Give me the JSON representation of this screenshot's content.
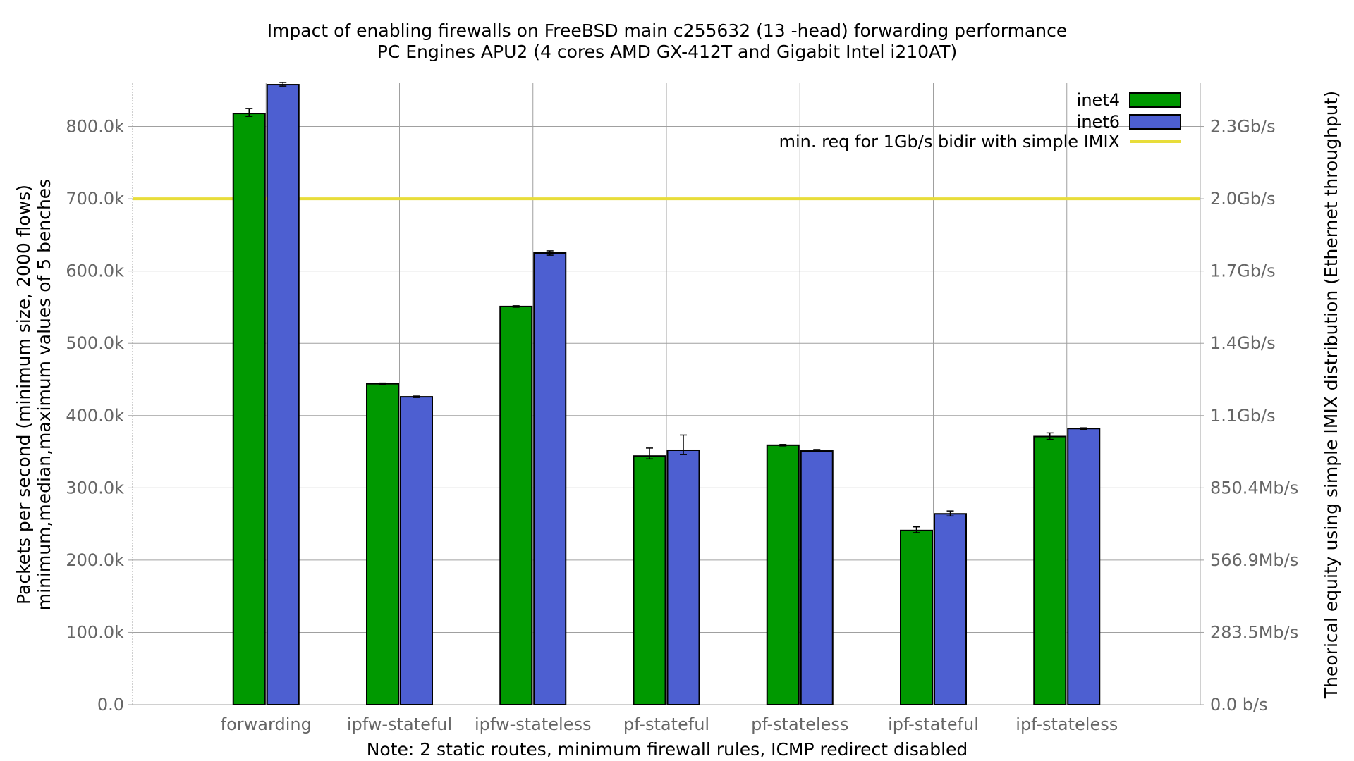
{
  "chart_data": {
    "type": "bar",
    "title": "Impact of enabling firewalls on FreeBSD main c255632 (13 -head) forwarding performance",
    "subtitle": "PC Engines APU2 (4 cores AMD GX-412T and Gigabit Intel i210AT)",
    "ylabel": "Packets per second (minimum size, 2000 flows)",
    "ylabel2": "minimum,median,maximum values of 5 benches",
    "y2label": "Theorical equity using simple IMIX distribution (Ethernet throughput)",
    "note": "Note: 2 static routes, minimum firewall rules, ICMP redirect disabled",
    "ylim": [
      0,
      860000
    ],
    "grid": true,
    "legend_position": "top-right",
    "categories": [
      "forwarding",
      "ipfw-stateful",
      "ipfw-stateless",
      "pf-stateful",
      "pf-stateless",
      "ipf-stateful",
      "ipf-stateless"
    ],
    "yticks": [
      {
        "value": 0,
        "label": "0.0"
      },
      {
        "value": 100000,
        "label": "100.0k"
      },
      {
        "value": 200000,
        "label": "200.0k"
      },
      {
        "value": 300000,
        "label": "300.0k"
      },
      {
        "value": 400000,
        "label": "400.0k"
      },
      {
        "value": 500000,
        "label": "500.0k"
      },
      {
        "value": 600000,
        "label": "600.0k"
      },
      {
        "value": 700000,
        "label": "700.0k"
      },
      {
        "value": 800000,
        "label": "800.0k"
      }
    ],
    "y2ticks": [
      {
        "value": 0,
        "label": "0.0 b/s"
      },
      {
        "value": 100000,
        "label": "283.5Mb/s"
      },
      {
        "value": 200000,
        "label": "566.9Mb/s"
      },
      {
        "value": 300000,
        "label": "850.4Mb/s"
      },
      {
        "value": 400000,
        "label": "1.1Gb/s"
      },
      {
        "value": 500000,
        "label": "1.4Gb/s"
      },
      {
        "value": 600000,
        "label": "1.7Gb/s"
      },
      {
        "value": 700000,
        "label": "2.0Gb/s"
      },
      {
        "value": 800000,
        "label": "2.3Gb/s"
      }
    ],
    "series": [
      {
        "name": "inet4",
        "color": "#009900",
        "values": [
          818000,
          444000,
          551000,
          344000,
          359000,
          241000,
          371000
        ],
        "min": [
          814000,
          443000,
          550000,
          340000,
          358000,
          238000,
          367000
        ],
        "max": [
          825000,
          445000,
          552000,
          355000,
          360000,
          246000,
          376000
        ]
      },
      {
        "name": "inet6",
        "color": "#4d5fd1",
        "values": [
          858000,
          426000,
          625000,
          352000,
          351000,
          264000,
          382000
        ],
        "min": [
          856000,
          425000,
          622000,
          346000,
          350000,
          261000,
          381000
        ],
        "max": [
          861000,
          427000,
          628000,
          373000,
          353000,
          268000,
          383000
        ]
      }
    ],
    "reference_line": {
      "name": "min. req for 1Gb/s bidir with simple IMIX",
      "value": 700000,
      "color": "#e8dd3a"
    }
  }
}
